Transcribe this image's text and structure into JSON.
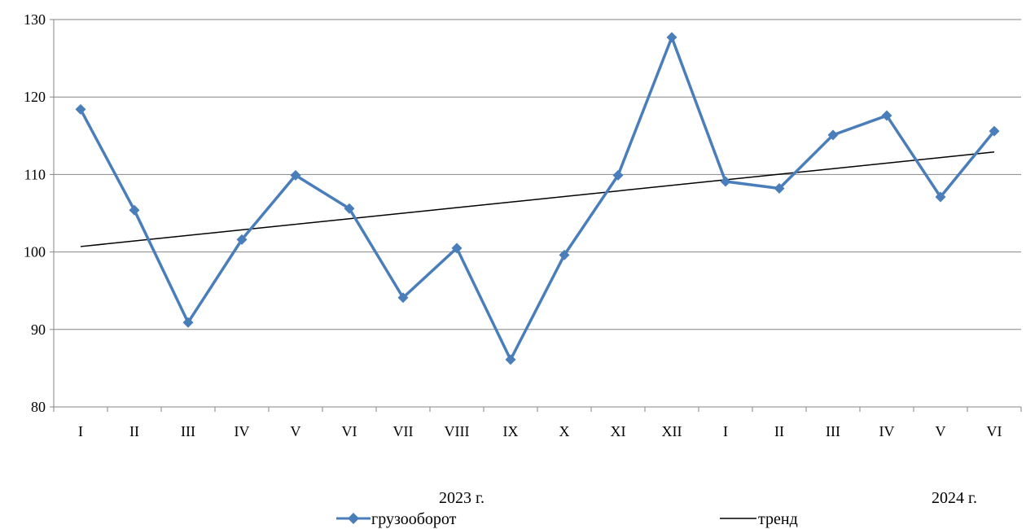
{
  "chart_data": {
    "type": "line",
    "categories": [
      "I",
      "II",
      "III",
      "IV",
      "V",
      "VI",
      "VII",
      "VIII",
      "IX",
      "X",
      "XI",
      "XII",
      "I",
      "II",
      "III",
      "IV",
      "V",
      "VI"
    ],
    "groups": [
      "2023 г.",
      "2024 г."
    ],
    "ylim": [
      80,
      130
    ],
    "yticks": [
      "80",
      "90",
      "100",
      "110",
      "120",
      "130"
    ],
    "grid": true,
    "legend_position": "bottom",
    "series": [
      {
        "name": "грузооборот",
        "color": "#4a7ebb",
        "marker": "diamond",
        "values": [
          118.4,
          105.4,
          90.9,
          101.6,
          109.9,
          105.6,
          94.1,
          100.5,
          86.1,
          99.6,
          109.9,
          127.7,
          109.1,
          108.2,
          115.1,
          117.6,
          107.1,
          115.6
        ]
      },
      {
        "name": "тренд",
        "color": "#000000",
        "kind": "linear",
        "start": 100.7,
        "end": 112.9
      }
    ]
  }
}
